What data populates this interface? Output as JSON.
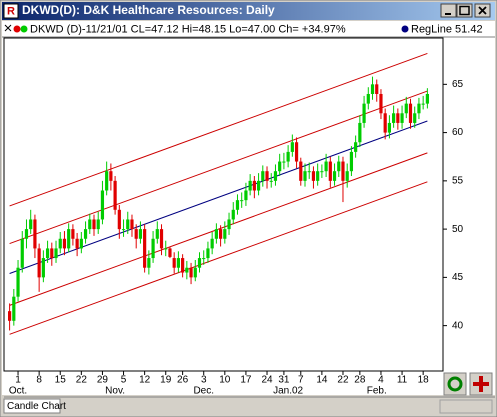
{
  "window": {
    "title": "DKWD(D): D&K Healthcare Resources: Daily",
    "tab": "Candle Chart"
  },
  "chart_data": {
    "type": "candlestick",
    "legend": {
      "text": "DKWD (D)-11/21/01 CL=47.12 Hi=48.15 Lo=47.00 Ch= +34.97%",
      "regline": "RegLine 51.42"
    },
    "categories": [
      null,
      null,
      "1",
      null,
      null,
      null,
      null,
      "8",
      null,
      null,
      null,
      null,
      "15",
      null,
      null,
      null,
      null,
      "22",
      null,
      null,
      null,
      null,
      "29",
      null,
      null,
      null,
      null,
      "5",
      null,
      null,
      null,
      null,
      "12",
      null,
      null,
      null,
      null,
      "19",
      null,
      null,
      null,
      "26",
      null,
      null,
      null,
      null,
      "3",
      null,
      null,
      null,
      null,
      "10",
      null,
      null,
      null,
      null,
      "17",
      null,
      null,
      null,
      null,
      "24",
      null,
      null,
      null,
      "31",
      null,
      null,
      null,
      "7",
      null,
      null,
      null,
      null,
      "14",
      null,
      null,
      null,
      null,
      "22",
      null,
      null,
      null,
      "28",
      null,
      null,
      null,
      null,
      "4",
      null,
      null,
      null,
      null,
      "11",
      null,
      null,
      null,
      null,
      "18",
      null
    ],
    "month_categories": [
      null,
      null,
      "Oct.",
      null,
      null,
      null,
      null,
      null,
      null,
      null,
      null,
      null,
      null,
      null,
      null,
      null,
      null,
      null,
      null,
      null,
      null,
      null,
      null,
      null,
      null,
      "Nov.",
      null,
      null,
      null,
      null,
      null,
      null,
      null,
      null,
      null,
      null,
      null,
      null,
      null,
      null,
      null,
      null,
      null,
      null,
      null,
      null,
      "Dec.",
      null,
      null,
      null,
      null,
      null,
      null,
      null,
      null,
      null,
      null,
      null,
      null,
      null,
      null,
      null,
      null,
      null,
      null,
      null,
      "Jan.02",
      null,
      null,
      null,
      null,
      null,
      null,
      null,
      null,
      null,
      null,
      null,
      null,
      null,
      null,
      null,
      null,
      null,
      null,
      null,
      null,
      "Feb.",
      null,
      null,
      null,
      null,
      null,
      null,
      null,
      null,
      null,
      null,
      null,
      null
    ],
    "open": [
      41.5,
      40.5,
      43,
      46,
      49,
      50,
      51,
      48,
      45,
      47,
      48,
      47,
      48,
      49,
      48,
      50,
      49,
      48,
      49,
      50,
      51,
      50,
      51,
      54,
      56,
      55,
      52,
      50,
      50,
      51,
      50,
      49,
      50,
      46,
      47,
      49,
      50,
      48,
      48,
      47,
      46,
      47,
      45.5,
      46,
      45,
      46,
      47,
      47,
      48,
      49,
      50,
      49,
      50,
      51,
      52,
      53,
      53,
      54,
      55,
      54,
      55,
      56,
      55,
      55,
      56,
      57,
      57,
      58,
      59,
      57,
      55,
      56,
      56,
      55,
      56,
      56,
      57,
      55,
      56,
      57,
      55,
      56,
      58,
      59,
      61,
      63,
      64,
      65,
      64,
      62,
      60,
      61,
      62,
      61,
      62,
      63,
      61,
      62,
      63,
      63
    ],
    "high": [
      42.3,
      43.8,
      46.8,
      49.8,
      51,
      52,
      51.5,
      48.5,
      47.8,
      48.8,
      48.6,
      48.8,
      49.7,
      49.8,
      50.6,
      50.5,
      49.6,
      49.7,
      50.8,
      51.6,
      51.5,
      51.8,
      55,
      57,
      56.8,
      55.5,
      52.5,
      51,
      51.8,
      51.5,
      50.5,
      50.8,
      50.5,
      47.8,
      49.8,
      50.8,
      50.5,
      48.8,
      48.15,
      47.6,
      47.7,
      47.4,
      46.7,
      46.5,
      46.8,
      47.6,
      47.8,
      48.7,
      49.7,
      50.6,
      50.4,
      50.8,
      51.7,
      52.8,
      53.6,
      53.8,
      54.8,
      55.7,
      55.5,
      55.8,
      56.6,
      56.5,
      55.8,
      56.7,
      57.8,
      57.9,
      58.7,
      59.8,
      59.5,
      57.4,
      56.8,
      56.9,
      56.5,
      56.8,
      56.7,
      57.8,
      57.5,
      56.8,
      57.6,
      57.5,
      56.8,
      58.6,
      59.7,
      61.8,
      63.8,
      64.7,
      65.8,
      65.5,
      64.5,
      62.5,
      61.8,
      62.8,
      62.5,
      62.8,
      63.7,
      63.5,
      62.7,
      63.6,
      63.8,
      64.6
    ],
    "low": [
      39.5,
      40,
      42.5,
      45.5,
      48,
      49.5,
      47,
      43.5,
      44.5,
      46.5,
      46.2,
      46.5,
      47.5,
      47.3,
      47.6,
      48.3,
      47.2,
      47.5,
      48.5,
      49.5,
      49.3,
      49.5,
      50.5,
      53.5,
      54,
      51.5,
      49,
      49.2,
      49.5,
      49.2,
      48,
      48.5,
      45.5,
      45.3,
      46.5,
      48.5,
      47.3,
      47.2,
      47,
      45.4,
      45.5,
      45,
      44.8,
      44.3,
      44.6,
      45.5,
      46.3,
      46.5,
      47.4,
      48.5,
      48.2,
      48.5,
      49.4,
      50.5,
      51.5,
      52.2,
      52.4,
      53.5,
      53.2,
      53.5,
      54.4,
      54.2,
      54.3,
      54.5,
      55.5,
      56.2,
      56.4,
      57.5,
      56.3,
      54.5,
      54.4,
      55.2,
      54.2,
      54.5,
      55.3,
      55.4,
      54.3,
      54.5,
      55.4,
      52.8,
      54.3,
      55.5,
      57.4,
      58.5,
      60.5,
      62.4,
      63.4,
      63.2,
      61.4,
      59.3,
      59.4,
      60.5,
      60.3,
      60.4,
      61.5,
      60.4,
      60.5,
      61.4,
      62.4,
      62.5
    ],
    "close": [
      40.5,
      43,
      46,
      49,
      50,
      51,
      48,
      45,
      47,
      48,
      47,
      48,
      49,
      48,
      50,
      49,
      48,
      49,
      50,
      51,
      50,
      51,
      54,
      56,
      55,
      52,
      50,
      50,
      51,
      50,
      49,
      50,
      46,
      47,
      49,
      50,
      48,
      48,
      47.12,
      46,
      47,
      45.5,
      46,
      45,
      46,
      47,
      47,
      48,
      49,
      50,
      49,
      50,
      51,
      52,
      53,
      53,
      54,
      55,
      54,
      55,
      56,
      55,
      55,
      56,
      57,
      57,
      58,
      59,
      57,
      55,
      56,
      56,
      55,
      56,
      56,
      57,
      55,
      56,
      57,
      55,
      56,
      58,
      59,
      61,
      63,
      64,
      65,
      64,
      62,
      60,
      61,
      62,
      61,
      62,
      63,
      61,
      62,
      63,
      63,
      64
    ],
    "up_color": "#00cc00",
    "down_color": "#e00000",
    "lines": [
      {
        "name": "RegLine",
        "color": "#000080",
        "values": [
          45.4,
          61.2
        ]
      },
      {
        "color": "#cc0000",
        "values": [
          52.4,
          68.2
        ]
      },
      {
        "color": "#cc0000",
        "values": [
          48.5,
          64.3
        ]
      },
      {
        "color": "#cc0000",
        "values": [
          42.1,
          57.9
        ]
      },
      {
        "color": "#cc0000",
        "values": [
          39.1,
          54.9
        ]
      }
    ],
    "ylim": [
      35.3,
      69.8
    ],
    "yticks": [
      40,
      45,
      50,
      55,
      60,
      65
    ]
  }
}
